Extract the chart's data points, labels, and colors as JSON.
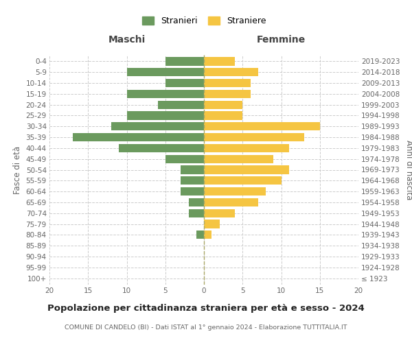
{
  "age_groups": [
    "100+",
    "95-99",
    "90-94",
    "85-89",
    "80-84",
    "75-79",
    "70-74",
    "65-69",
    "60-64",
    "55-59",
    "50-54",
    "45-49",
    "40-44",
    "35-39",
    "30-34",
    "25-29",
    "20-24",
    "15-19",
    "10-14",
    "5-9",
    "0-4"
  ],
  "birth_years": [
    "≤ 1923",
    "1924-1928",
    "1929-1933",
    "1934-1938",
    "1939-1943",
    "1944-1948",
    "1949-1953",
    "1954-1958",
    "1959-1963",
    "1964-1968",
    "1969-1973",
    "1974-1978",
    "1979-1983",
    "1984-1988",
    "1989-1993",
    "1994-1998",
    "1999-2003",
    "2004-2008",
    "2009-2013",
    "2014-2018",
    "2019-2023"
  ],
  "maschi": [
    0,
    0,
    0,
    0,
    1,
    0,
    2,
    2,
    3,
    3,
    3,
    5,
    11,
    17,
    12,
    10,
    6,
    10,
    5,
    10,
    5
  ],
  "femmine": [
    0,
    0,
    0,
    0,
    1,
    2,
    4,
    7,
    8,
    10,
    11,
    9,
    11,
    13,
    15,
    5,
    5,
    6,
    6,
    7,
    4
  ],
  "color_maschi": "#6b9a5e",
  "color_femmine": "#f5c542",
  "title": "Popolazione per cittadinanza straniera per età e sesso - 2024",
  "subtitle": "COMUNE DI CANDELO (BI) - Dati ISTAT al 1° gennaio 2024 - Elaborazione TUTTITALIA.IT",
  "xlabel_left": "Maschi",
  "xlabel_right": "Femmine",
  "ylabel_left": "Fasce di età",
  "ylabel_right": "Anni di nascita",
  "legend_maschi": "Stranieri",
  "legend_femmine": "Straniere",
  "xlim": 20,
  "background_color": "#ffffff",
  "grid_color": "#cccccc"
}
